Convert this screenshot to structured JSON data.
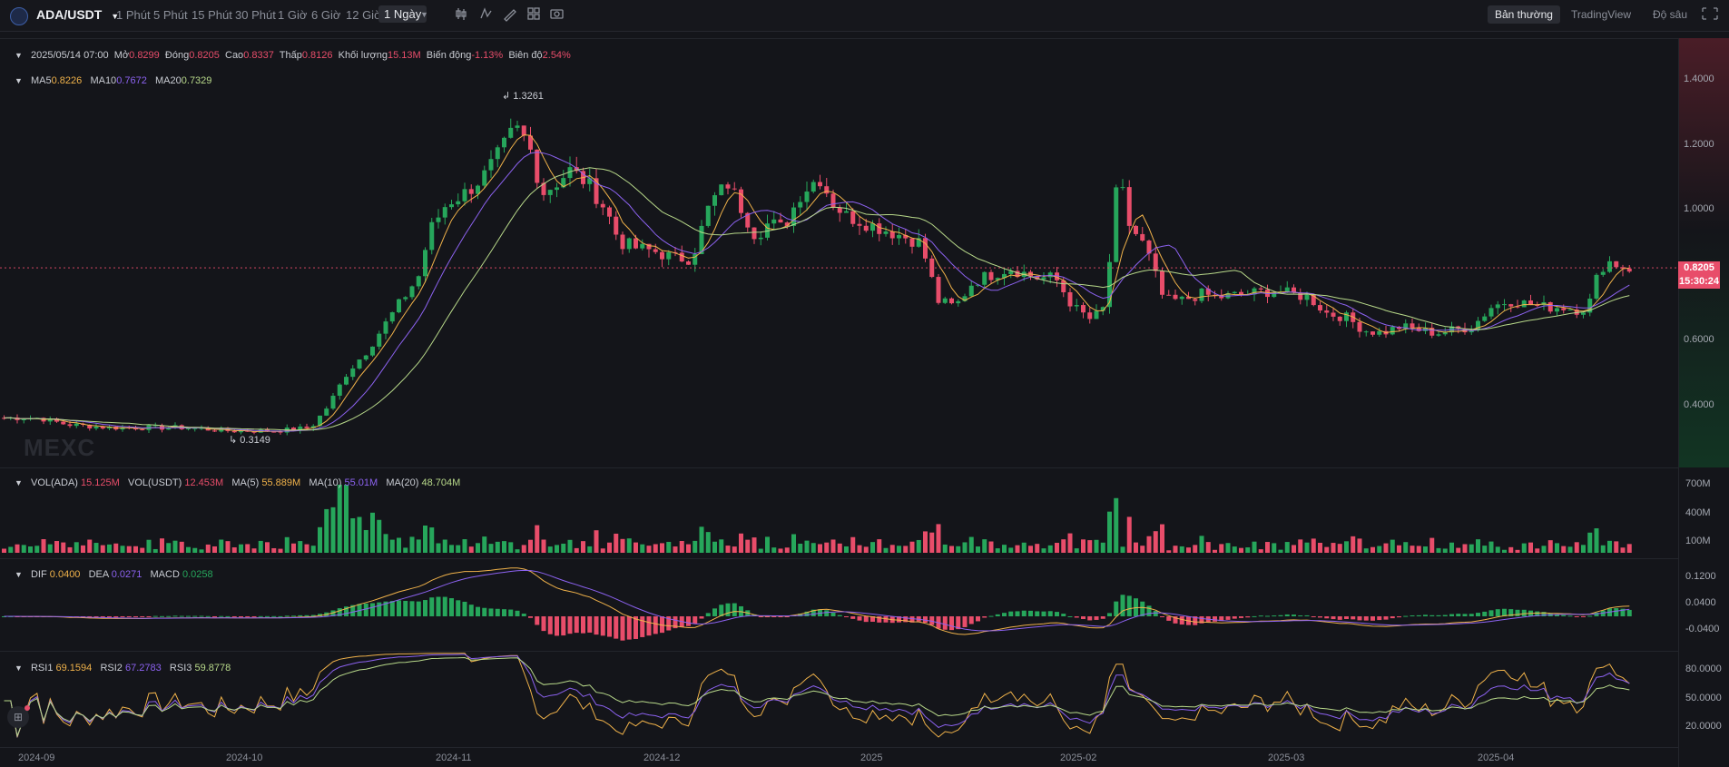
{
  "toolbar": {
    "pair": "ADA/USDT",
    "intervals": [
      "1 Phút",
      "5 Phút",
      "15 Phút",
      "30 Phút",
      "1 Giờ",
      "6 Giờ",
      "12 Giờ",
      "1 Ngày"
    ],
    "active_interval": "1 Ngày",
    "modes": [
      "Bản thường",
      "TradingView",
      "Độ sâu"
    ],
    "icons": [
      "candle-type-icon",
      "indicator-icon",
      "draw-icon",
      "layout-icon",
      "camera-icon",
      "fullscreen-icon"
    ]
  },
  "ohlc": {
    "date": "2025/05/14 07:00",
    "open_label": "Mở",
    "open": "0.8299",
    "close_label": "Đóng",
    "close": "0.8205",
    "high_label": "Cao",
    "high": "0.8337",
    "low_label": "Thấp",
    "low": "0.8126",
    "volume_label": "Khối lượng",
    "volume": "15.13M",
    "change_label": "Biến động",
    "change": "-1.13%",
    "amplitude_label": "Biên độ",
    "amplitude": "2.54%"
  },
  "ma": {
    "ma5_label": "MA5",
    "ma5": "0.8226",
    "ma10_label": "MA10",
    "ma10": "0.7672",
    "ma20_label": "MA20",
    "ma20": "0.7329"
  },
  "price_axis": [
    "1.4000",
    "1.2000",
    "1.0000",
    "0.6000",
    "0.4000"
  ],
  "current_price": "0.8205",
  "countdown": "15:30:24",
  "high_mark": "1.3261",
  "low_mark": "0.3149",
  "watermark": "MEXC",
  "volume": {
    "vol_ada_label": "VOL(ADA)",
    "vol_ada": "15.125M",
    "vol_usdt_label": "VOL(USDT)",
    "vol_usdt": "12.453M",
    "ma5_label": "MA(5)",
    "ma5": "55.889M",
    "ma10_label": "MA(10)",
    "ma10": "55.01M",
    "ma20_label": "MA(20)",
    "ma20": "48.704M",
    "axis": [
      "700M",
      "400M",
      "100M"
    ]
  },
  "macd": {
    "dif_label": "DIF",
    "dif": "0.0400",
    "dea_label": "DEA",
    "dea": "0.0271",
    "macd_label": "MACD",
    "macd": "0.0258",
    "axis": [
      "0.1200",
      "0.0400",
      "-0.0400"
    ]
  },
  "rsi": {
    "rsi1_label": "RSI1",
    "rsi1": "69.1594",
    "rsi2_label": "RSI2",
    "rsi2": "67.2783",
    "rsi3_label": "RSI3",
    "rsi3": "59.8778",
    "axis": [
      "80.0000",
      "50.0000",
      "20.0000"
    ]
  },
  "x_axis": [
    "2024-09",
    "2024-10",
    "2024-11",
    "2024-12",
    "2025",
    "2025-02",
    "2025-03",
    "2025-04"
  ],
  "colors": {
    "up": "#26a65b",
    "down": "#e84d6a",
    "ma5": "#f0b24a",
    "ma10": "#8c62f0",
    "ma20": "#b8d98a"
  },
  "chart_data": {
    "type": "candlestick",
    "symbol": "ADA/USDT",
    "interval": "1 Ngày",
    "x": [
      "2024-09",
      "2024-10",
      "2024-11",
      "2024-12",
      "2025",
      "2025-02",
      "2025-03",
      "2025-04",
      "2025-05"
    ],
    "close_approx": [
      0.34,
      0.35,
      0.74,
      1.05,
      0.9,
      0.78,
      0.7,
      0.62,
      0.8205
    ],
    "period_high": 1.3261,
    "period_low": 0.3149,
    "ylim": [
      0.3,
      1.45
    ],
    "series": [
      {
        "name": "MA5",
        "last": 0.8226
      },
      {
        "name": "MA10",
        "last": 0.7672
      },
      {
        "name": "MA20",
        "last": 0.7329
      }
    ]
  }
}
